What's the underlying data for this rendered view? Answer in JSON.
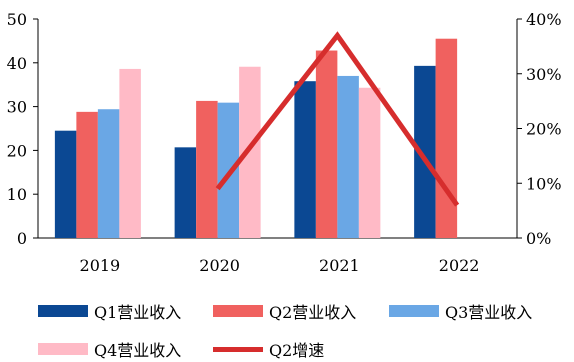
{
  "chart_data": {
    "type": "bar",
    "categories": [
      "2019",
      "2020",
      "2021",
      "2022"
    ],
    "series": [
      {
        "name": "Q1营业收入",
        "kind": "bar",
        "axis": "left",
        "color": "#0b4893",
        "values": [
          24.5,
          20.7,
          35.8,
          39.3
        ]
      },
      {
        "name": "Q2营业收入",
        "kind": "bar",
        "axis": "left",
        "color": "#f0615f",
        "values": [
          28.8,
          31.3,
          42.8,
          45.5
        ]
      },
      {
        "name": "Q3营业收入",
        "kind": "bar",
        "axis": "left",
        "color": "#6aa7e5",
        "values": [
          29.4,
          30.9,
          37.0,
          null
        ]
      },
      {
        "name": "Q4营业收入",
        "kind": "bar",
        "axis": "left",
        "color": "#ffbac6",
        "values": [
          38.6,
          39.1,
          34.3,
          null
        ]
      },
      {
        "name": "Q2增速",
        "kind": "line",
        "axis": "right",
        "color": "#d62d2d",
        "values": [
          null,
          0.09,
          0.37,
          0.06
        ]
      }
    ],
    "ylim": [
      0,
      50
    ],
    "yticks": [
      "0",
      "10",
      "20",
      "30",
      "40",
      "50"
    ],
    "y2lim": [
      0,
      0.4
    ],
    "y2ticks": [
      "0%",
      "10%",
      "20%",
      "30%",
      "40%"
    ],
    "legend_position": "bottom",
    "grid": false
  }
}
